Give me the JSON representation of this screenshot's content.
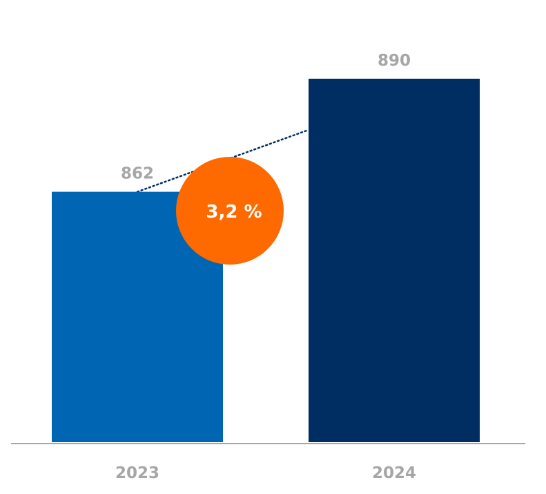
{
  "chart_data": {
    "type": "bar",
    "categories": [
      "2023",
      "2024"
    ],
    "values": [
      862,
      890
    ],
    "value_labels": [
      "862",
      "890"
    ],
    "ylim": [
      800,
      897
    ],
    "bar_colors": [
      "#0066b3",
      "#002d62"
    ],
    "growth": {
      "label": "3,2 %",
      "color": "#ff6a00"
    },
    "axis_color": "#a6a6a6",
    "label_color": "#a6a6a6",
    "connector_color": "#002d62",
    "grid": false
  }
}
